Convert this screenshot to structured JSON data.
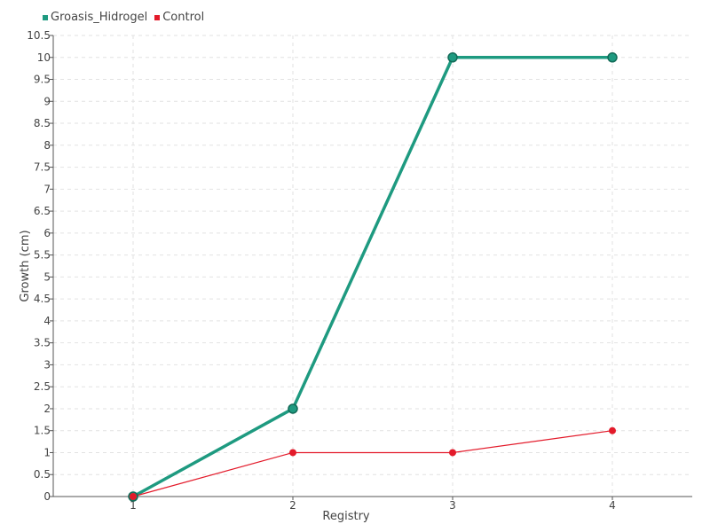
{
  "chart_data": {
    "type": "line",
    "xlabel": "Registry",
    "ylabel": "Growth (cm)",
    "categories": [
      "1",
      "2",
      "3",
      "4"
    ],
    "ylim": [
      0,
      10.5
    ],
    "ytick_step": 0.5,
    "grid": true,
    "legend_position": "top-left",
    "series": [
      {
        "name": "Groasis_Hidrogel",
        "color": "#1e9a80",
        "values": [
          0,
          2,
          10,
          10
        ]
      },
      {
        "name": "Control",
        "color": "#e31a2a",
        "values": [
          0,
          1,
          1,
          1.5
        ]
      }
    ]
  }
}
